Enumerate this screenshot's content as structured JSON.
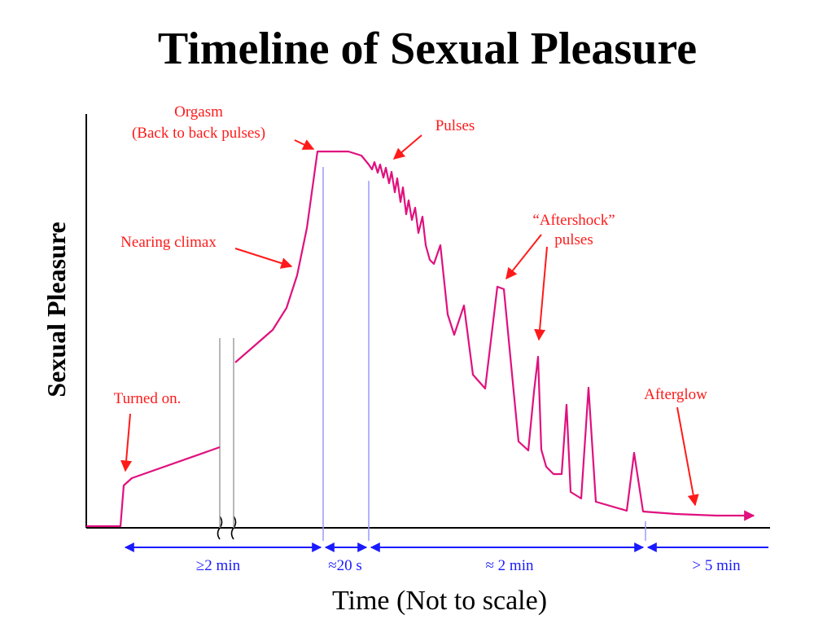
{
  "title": "Timeline of Sexual Pleasure",
  "ylabel": "Sexual Pleasure",
  "xlabel": "Time (Not to scale)",
  "colors": {
    "curve": "#e0107e",
    "annotation": "#ff1a1a",
    "duration": "#1a1aff",
    "marker": "#9a9aff"
  },
  "annotations": {
    "orgasm_line1": "Orgasm",
    "orgasm_line2": "(Back to back pulses)",
    "pulses": "Pulses",
    "nearing_climax": "Nearing climax",
    "aftershock_line1": "“Aftershock”",
    "aftershock_line2": "pulses",
    "turned_on": "Turned on.",
    "afterglow": "Afterglow"
  },
  "durations": {
    "d1": "≥2 min",
    "d2": "≈20 s",
    "d3": "≈ 2 min",
    "d4": "> 5 min"
  }
}
